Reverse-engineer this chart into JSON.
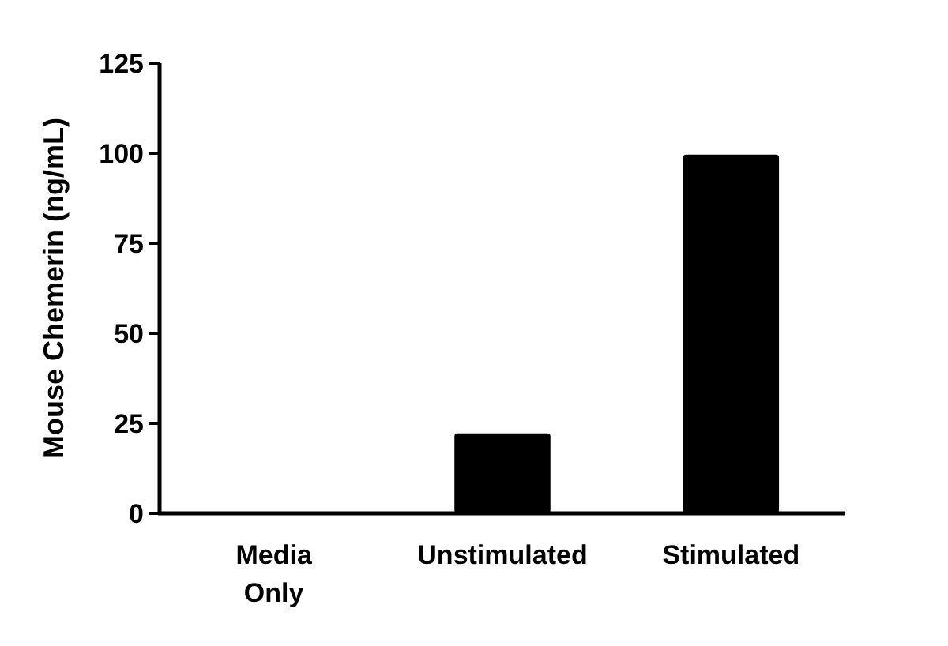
{
  "chart_data": {
    "type": "bar",
    "ylabel": "Mouse Chemerin (ng/mL)",
    "categories": [
      "Media Only",
      "Unstimulated",
      "Stimulated"
    ],
    "values": [
      0,
      22.2,
      99.6
    ],
    "color": "#000000",
    "ylim": [
      0,
      125
    ],
    "yticks": [
      0,
      25,
      50,
      75,
      100,
      125
    ],
    "grid": false
  }
}
